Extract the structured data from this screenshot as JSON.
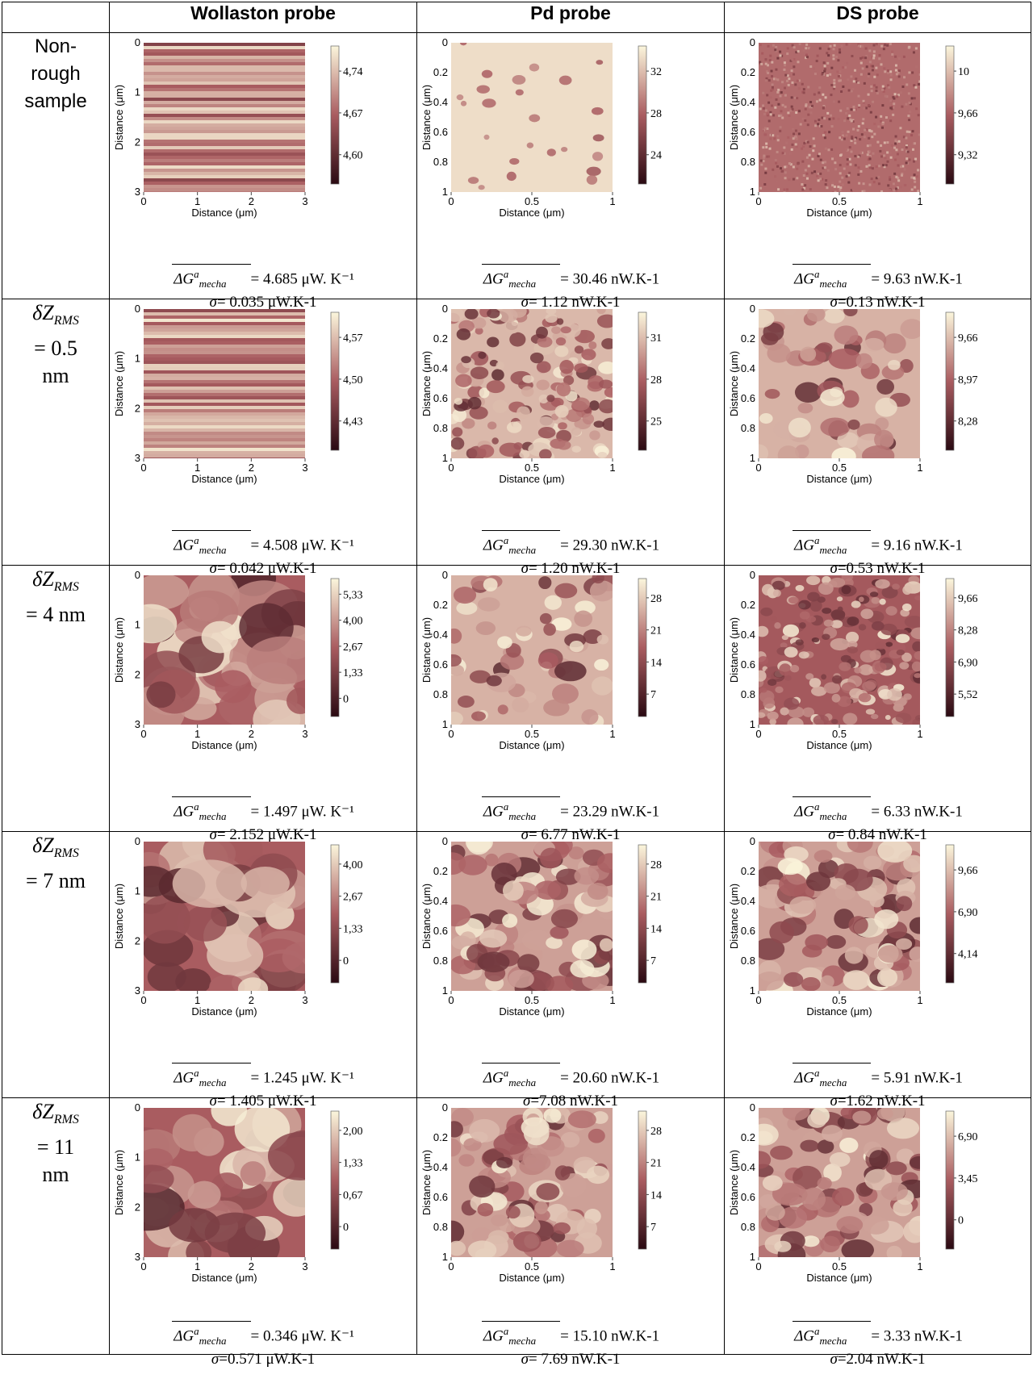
{
  "columns": {
    "corner": "",
    "wollaston": "Wollaston probe",
    "pd": "Pd probe",
    "ds": "DS probe"
  },
  "axis": {
    "ylabel": "Distance (μm)",
    "xlabel": "Distance (μm)"
  },
  "colors": {
    "dark": "#2a0a12",
    "mid": "#a95c60",
    "light": "#fbf6dc",
    "border": "#000000"
  },
  "symbol": {
    "G": "ΔG",
    "sup": "a",
    "sub": "mecha",
    "sigma": "σ"
  },
  "rows": [
    {
      "label_lines": [
        "Non-",
        "rough",
        "sample"
      ],
      "cells": [
        {
          "xticks": [
            "0",
            "1",
            "2",
            "3"
          ],
          "yticks": [
            "0",
            "1",
            "2",
            "3"
          ],
          "cbar": [
            "4,74",
            "4,67",
            "4,60"
          ],
          "texture": "stripes",
          "g_value": "= 4.685 μW. K⁻¹",
          "sigma_value": "= 0.035 μW.K-1"
        },
        {
          "xticks": [
            "0",
            "0.5",
            "1"
          ],
          "yticks": [
            "0",
            "0.2",
            "0.4",
            "0.6",
            "0.8",
            "1"
          ],
          "cbar": [
            "32",
            "28",
            "24"
          ],
          "texture": "dots",
          "g_value": "= 30.46 nW.K-1",
          "sigma_value": "= 1.12 nW.K-1"
        },
        {
          "xticks": [
            "0",
            "0.5",
            "1"
          ],
          "yticks": [
            "0",
            "0.2",
            "0.4",
            "0.6",
            "0.8",
            "1"
          ],
          "cbar": [
            "10",
            "9,66",
            "9,32"
          ],
          "texture": "fine",
          "g_value": "= 9.63 nW.K-1",
          "sigma_value": "=0.13 nW.K-1"
        }
      ]
    },
    {
      "label_main": "δZ",
      "label_sub": "RMS",
      "label_rest": [
        "= 0.5",
        "nm"
      ],
      "cells": [
        {
          "xticks": [
            "0",
            "1",
            "2",
            "3"
          ],
          "yticks": [
            "0",
            "1",
            "2",
            "3"
          ],
          "cbar": [
            "4,57",
            "4,50",
            "4,43"
          ],
          "texture": "stripes",
          "g_value": "= 4.508 μW. K⁻¹",
          "sigma_value": "= 0.042 μW.K-1"
        },
        {
          "xticks": [
            "0",
            "0.5",
            "1"
          ],
          "yticks": [
            "0",
            "0.2",
            "0.4",
            "0.6",
            "0.8",
            "1"
          ],
          "cbar": [
            "31",
            "28",
            "25"
          ],
          "texture": "grains",
          "g_value": "= 29.30 nW.K-1",
          "sigma_value": "= 1.20 nW.K-1"
        },
        {
          "xticks": [
            "0",
            "0.5",
            "1"
          ],
          "yticks": [
            "0",
            "0.2",
            "0.4",
            "0.6",
            "0.8",
            "1"
          ],
          "cbar": [
            "9,66",
            "8,97",
            "8,28"
          ],
          "texture": "blobs",
          "g_value": "= 9.16 nW.K-1",
          "sigma_value": "=0.53 nW.K-1"
        }
      ]
    },
    {
      "label_main": "δZ",
      "label_sub": "RMS",
      "label_rest": [
        "= 4 nm"
      ],
      "cells": [
        {
          "xticks": [
            "0",
            "1",
            "2",
            "3"
          ],
          "yticks": [
            "0",
            "1",
            "2",
            "3"
          ],
          "cbar": [
            "5,33",
            "4,00",
            "2,67",
            "1,33",
            "0"
          ],
          "texture": "patches",
          "g_value": "= 1.497 μW. K⁻¹",
          "sigma_value": "= 2.152 μW.K-1"
        },
        {
          "xticks": [
            "0",
            "0.5",
            "1"
          ],
          "yticks": [
            "0",
            "0.2",
            "0.4",
            "0.6",
            "0.8",
            "1"
          ],
          "cbar": [
            "28",
            "21",
            "14",
            "7"
          ],
          "texture": "blobs",
          "g_value": "= 23.29 nW.K-1",
          "sigma_value": "= 6.77 nW.K-1"
        },
        {
          "xticks": [
            "0",
            "0.5",
            "1"
          ],
          "yticks": [
            "0",
            "0.2",
            "0.4",
            "0.6",
            "0.8",
            "1"
          ],
          "cbar": [
            "9,66",
            "8,28",
            "6,90",
            "5,52"
          ],
          "texture": "noisy",
          "g_value": "= 6.33 nW.K-1",
          "sigma_value": "= 0.84 nW.K-1"
        }
      ]
    },
    {
      "label_main": "δZ",
      "label_sub": "RMS",
      "label_rest": [
        "= 7 nm"
      ],
      "cells": [
        {
          "xticks": [
            "0",
            "1",
            "2",
            "3"
          ],
          "yticks": [
            "0",
            "1",
            "2",
            "3"
          ],
          "cbar": [
            "4,00",
            "2,67",
            "1,33",
            "0"
          ],
          "texture": "patches",
          "g_value": "= 1.245 μW. K⁻¹",
          "sigma_value": "= 1.405 μW.K-1"
        },
        {
          "xticks": [
            "0",
            "0.5",
            "1"
          ],
          "yticks": [
            "0",
            "0.2",
            "0.4",
            "0.6",
            "0.8",
            "1"
          ],
          "cbar": [
            "28",
            "21",
            "14",
            "7"
          ],
          "texture": "cells",
          "g_value": "= 20.60 nW.K-1",
          "sigma_value": "=7.08 nW.K-1"
        },
        {
          "xticks": [
            "0",
            "0.5",
            "1"
          ],
          "yticks": [
            "0",
            "0.2",
            "0.4",
            "0.6",
            "0.8",
            "1"
          ],
          "cbar": [
            "9,66",
            "6,90",
            "4,14"
          ],
          "texture": "cells",
          "g_value": "= 5.91 nW.K-1",
          "sigma_value": "=1.62 nW.K-1"
        }
      ]
    },
    {
      "label_main": "δZ",
      "label_sub": "RMS",
      "label_rest": [
        "= 11",
        "nm"
      ],
      "cells": [
        {
          "xticks": [
            "0",
            "1",
            "2",
            "3"
          ],
          "yticks": [
            "0",
            "1",
            "2",
            "3"
          ],
          "cbar": [
            "2,00",
            "1,33",
            "0,67",
            "0"
          ],
          "texture": "patches",
          "g_value": "= 0.346 μW. K⁻¹",
          "sigma_value": "=0.571 μW.K-1"
        },
        {
          "xticks": [
            "0",
            "0.5",
            "1"
          ],
          "yticks": [
            "0",
            "0.2",
            "0.4",
            "0.6",
            "0.8",
            "1"
          ],
          "cbar": [
            "28",
            "21",
            "14",
            "7"
          ],
          "texture": "cells",
          "g_value": "= 15.10 nW.K-1",
          "sigma_value": "= 7.69 nW.K-1"
        },
        {
          "xticks": [
            "0",
            "0.5",
            "1"
          ],
          "yticks": [
            "0",
            "0.2",
            "0.4",
            "0.6",
            "0.8",
            "1"
          ],
          "cbar": [
            "6,90",
            "3,45",
            "0"
          ],
          "texture": "cells",
          "g_value": "= 3.33 nW.K-1",
          "sigma_value": "=2.04 nW.K-1"
        }
      ]
    }
  ]
}
